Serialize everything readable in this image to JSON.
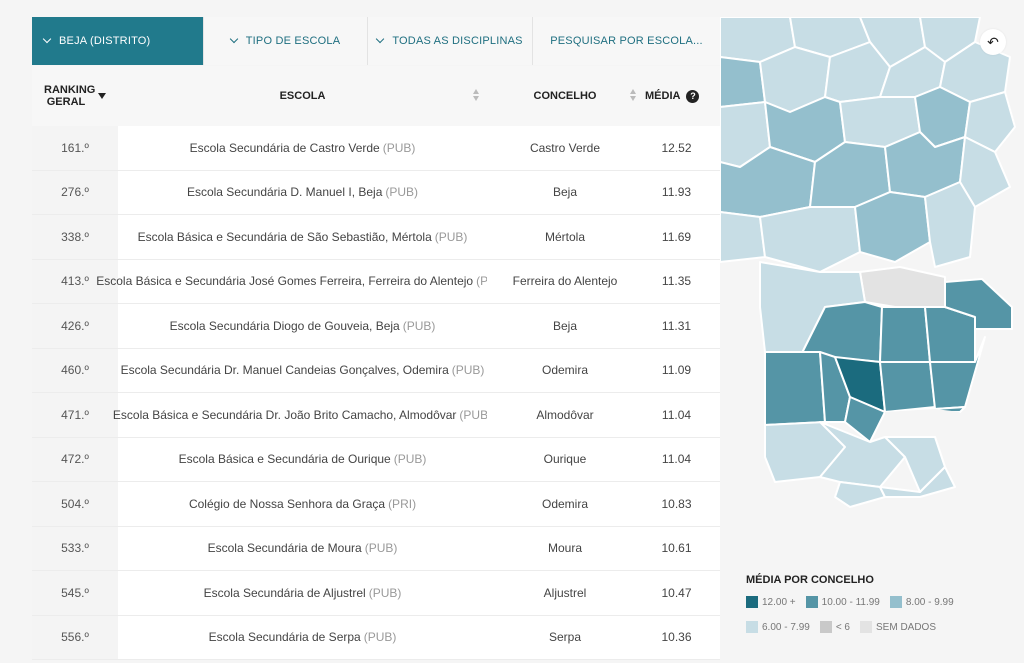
{
  "filters": [
    {
      "label": "Beja (Distrito)",
      "active": true
    },
    {
      "label": "Tipo de Escola",
      "active": false
    },
    {
      "label": "Todas as disciplinas",
      "active": false
    },
    {
      "label": "Pesquisar por escola..."
    }
  ],
  "table": {
    "headers": {
      "rank": "Ranking Geral",
      "escola": "Escola",
      "concelho": "Concelho",
      "media": "Média",
      "help": "?"
    },
    "rows": [
      {
        "rank": "161.º",
        "escola": "Escola Secundária de Castro Verde",
        "tipo": "(PUB)",
        "concelho": "Castro Verde",
        "media": "12.52"
      },
      {
        "rank": "276.º",
        "escola": "Escola Secundária D. Manuel I, Beja",
        "tipo": "(PUB)",
        "concelho": "Beja",
        "media": "11.93"
      },
      {
        "rank": "338.º",
        "escola": "Escola Básica e Secundária de São Sebastião, Mértola",
        "tipo": "(PUB)",
        "concelho": "Mértola",
        "media": "11.69"
      },
      {
        "rank": "413.º",
        "escola": "Escola Básica e Secundária José Gomes Ferreira, Ferreira do Alentejo",
        "tipo": "(PUB)",
        "concelho": "Ferreira do Alentejo",
        "media": "11.35"
      },
      {
        "rank": "426.º",
        "escola": "Escola Secundária Diogo de Gouveia, Beja",
        "tipo": "(PUB)",
        "concelho": "Beja",
        "media": "11.31"
      },
      {
        "rank": "460.º",
        "escola": "Escola Secundária Dr. Manuel Candeias Gonçalves, Odemira",
        "tipo": "(PUB)",
        "concelho": "Odemira",
        "media": "11.09"
      },
      {
        "rank": "471.º",
        "escola": "Escola Básica e Secundária Dr. João Brito Camacho, Almodôvar",
        "tipo": "(PUB)",
        "concelho": "Almodôvar",
        "media": "11.04"
      },
      {
        "rank": "472.º",
        "escola": "Escola Básica e Secundária de Ourique",
        "tipo": "(PUB)",
        "concelho": "Ourique",
        "media": "11.04"
      },
      {
        "rank": "504.º",
        "escola": "Colégio de Nossa Senhora da Graça",
        "tipo": "(PRI)",
        "concelho": "Odemira",
        "media": "10.83"
      },
      {
        "rank": "533.º",
        "escola": "Escola Secundária de Moura",
        "tipo": "(PUB)",
        "concelho": "Moura",
        "media": "10.61"
      },
      {
        "rank": "545.º",
        "escola": "Escola Secundária de Aljustrel",
        "tipo": "(PUB)",
        "concelho": "Aljustrel",
        "media": "10.47"
      },
      {
        "rank": "556.º",
        "escola": "Escola Secundária de Serpa",
        "tipo": "(PUB)",
        "concelho": "Serpa",
        "media": "10.36"
      }
    ]
  },
  "map": {
    "back_icon": "undo-arrow-icon",
    "back_glyph": "↶"
  },
  "legend": {
    "title": "Média por Concelho",
    "items": [
      {
        "label": "12.00 +",
        "color": "#1b6b7e"
      },
      {
        "label": "10.00 - 11.99",
        "color": "#5595a6"
      },
      {
        "label": "8.00 - 9.99",
        "color": "#94bfcd"
      },
      {
        "label": "6.00 - 7.99",
        "color": "#c7dde5"
      },
      {
        "label": "< 6",
        "color": "#c9c9c9"
      },
      {
        "label": "SEM DADOS",
        "color": "#e3e3e3"
      }
    ]
  }
}
